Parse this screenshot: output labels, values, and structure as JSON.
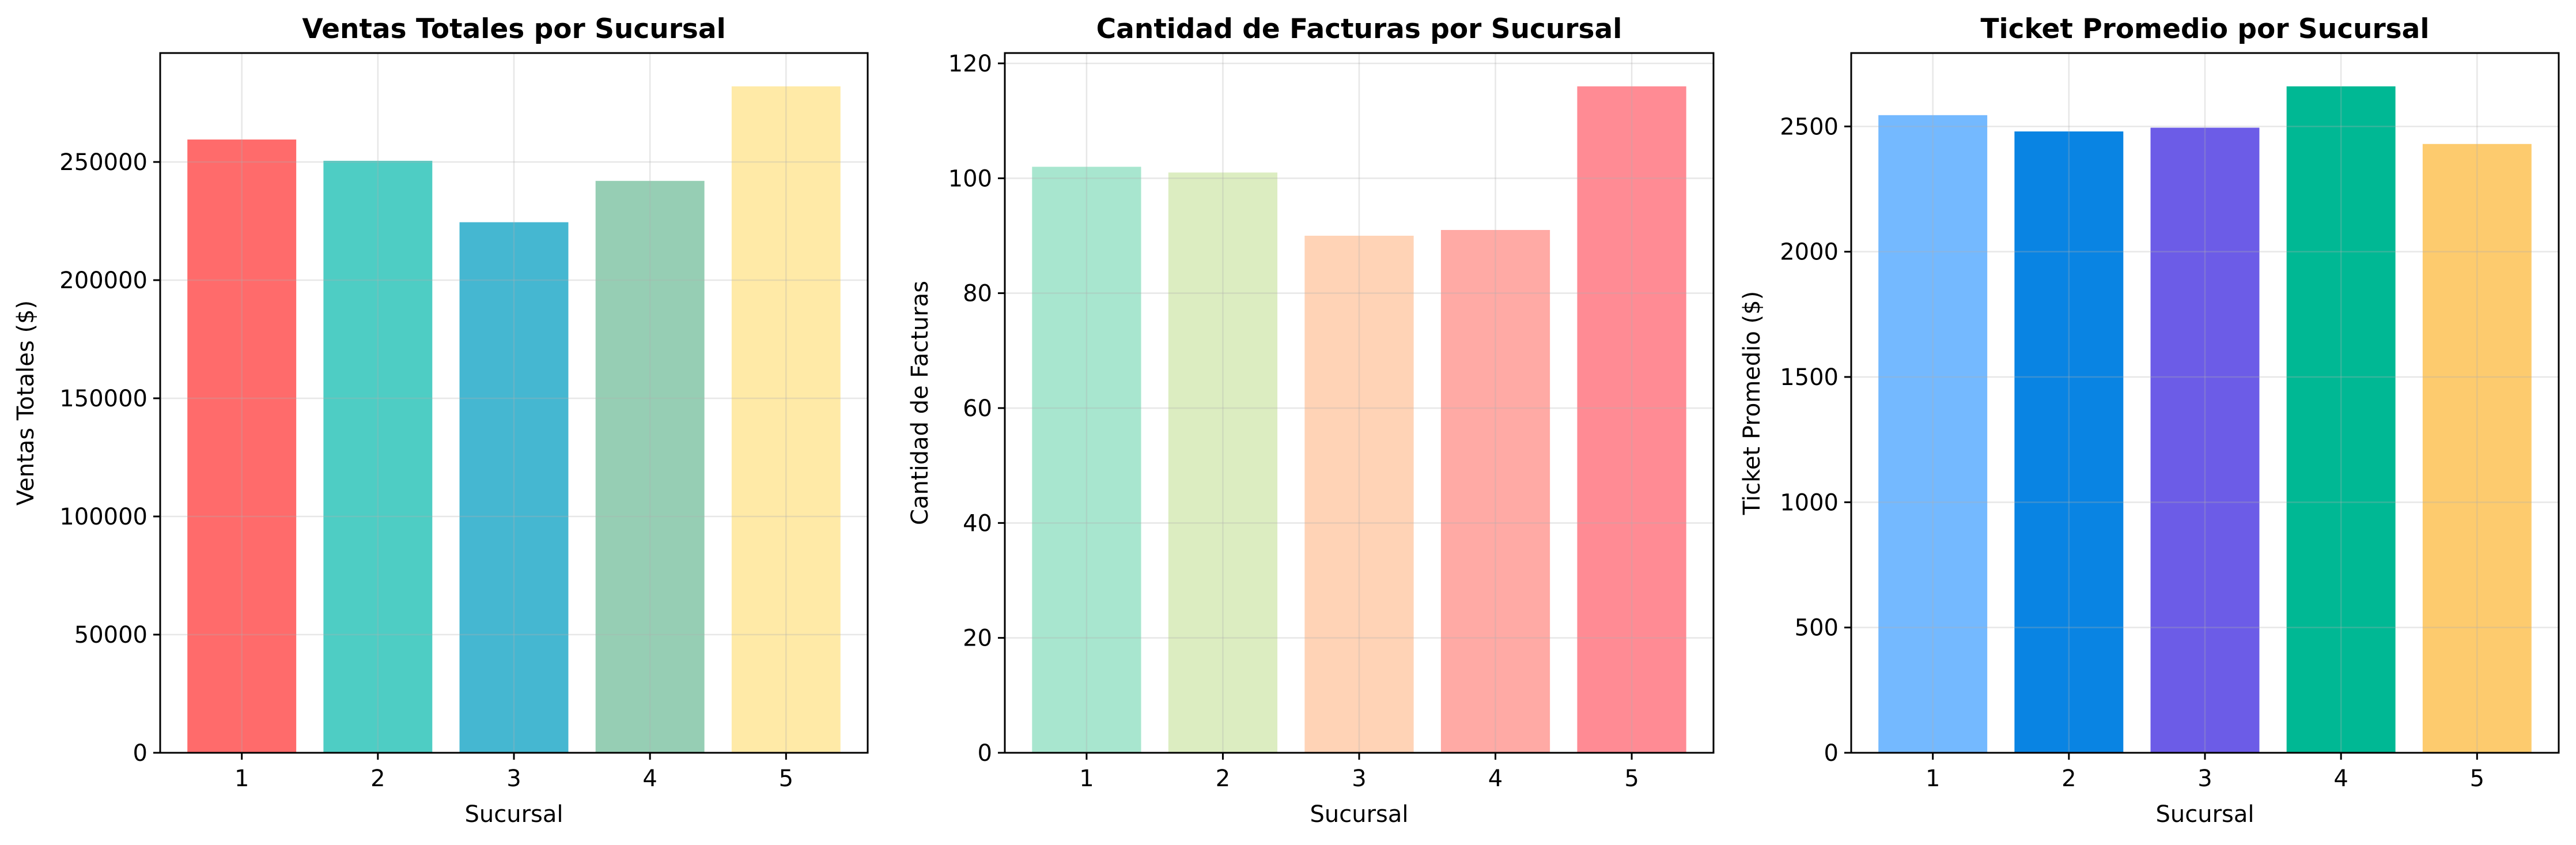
{
  "chart_data": [
    {
      "type": "bar",
      "title": "Ventas Totales por Sucursal",
      "xlabel": "Sucursal",
      "ylabel": "Ventas Totales ($)",
      "categories": [
        "1",
        "2",
        "3",
        "4",
        "5"
      ],
      "values": [
        259500,
        250500,
        224500,
        242000,
        282000
      ],
      "ylim": [
        0,
        296100
      ],
      "yticks": [
        0,
        50000,
        100000,
        150000,
        200000,
        250000
      ],
      "colors": [
        "#FF6B6B",
        "#4ECDC4",
        "#45B7D1",
        "#96CEB4",
        "#FFEAA7"
      ],
      "grid": true
    },
    {
      "type": "bar",
      "title": "Cantidad de Facturas por Sucursal",
      "xlabel": "Sucursal",
      "ylabel": "Cantidad de Facturas",
      "categories": [
        "1",
        "2",
        "3",
        "4",
        "5"
      ],
      "values": [
        102,
        101,
        90,
        91,
        116
      ],
      "ylim": [
        0,
        121.8
      ],
      "yticks": [
        0,
        20,
        40,
        60,
        80,
        100,
        120
      ],
      "colors": [
        "#A8E6CF",
        "#DCEDC1",
        "#FFD3B6",
        "#FFAAA5",
        "#FF8B94"
      ],
      "grid": true
    },
    {
      "type": "bar",
      "title": "Ticket Promedio por Sucursal",
      "xlabel": "Sucursal",
      "ylabel": "Ticket Promedio ($)",
      "categories": [
        "1",
        "2",
        "3",
        "4",
        "5"
      ],
      "values": [
        2545,
        2480,
        2495,
        2660,
        2430
      ],
      "ylim": [
        0,
        2793
      ],
      "yticks": [
        0,
        500,
        1000,
        1500,
        2000,
        2500
      ],
      "colors": [
        "#74B9FF",
        "#0984E3",
        "#6C5CE7",
        "#00B894",
        "#FDCB6E"
      ],
      "grid": true
    }
  ]
}
